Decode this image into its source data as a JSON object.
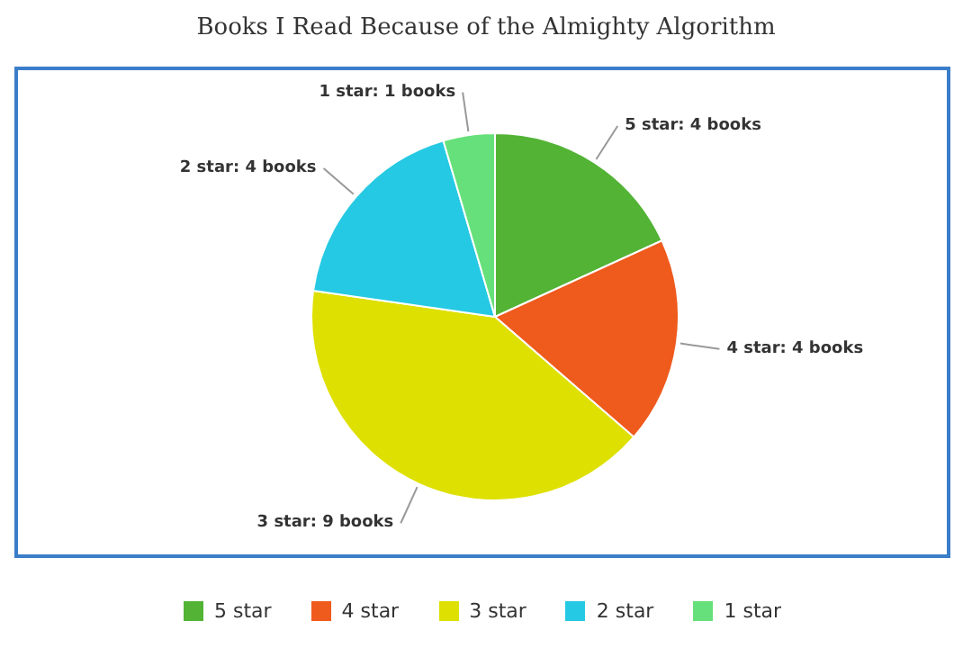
{
  "chart_data": {
    "type": "pie",
    "title": "Books I Read Because of the Almighty Algorithm",
    "categories": [
      "5 star",
      "4 star",
      "3 star",
      "2 star",
      "1 star"
    ],
    "values": [
      4,
      4,
      9,
      4,
      1
    ],
    "colors": [
      "#52b335",
      "#ef5a1d",
      "#dde000",
      "#26c9e3",
      "#66e07a"
    ],
    "value_labels": [
      "5 star: 4 books",
      "4 star: 4 books",
      "3 star: 9 books",
      "2 star: 4 books",
      "1 star: 1 books"
    ],
    "legend": "bottom"
  }
}
